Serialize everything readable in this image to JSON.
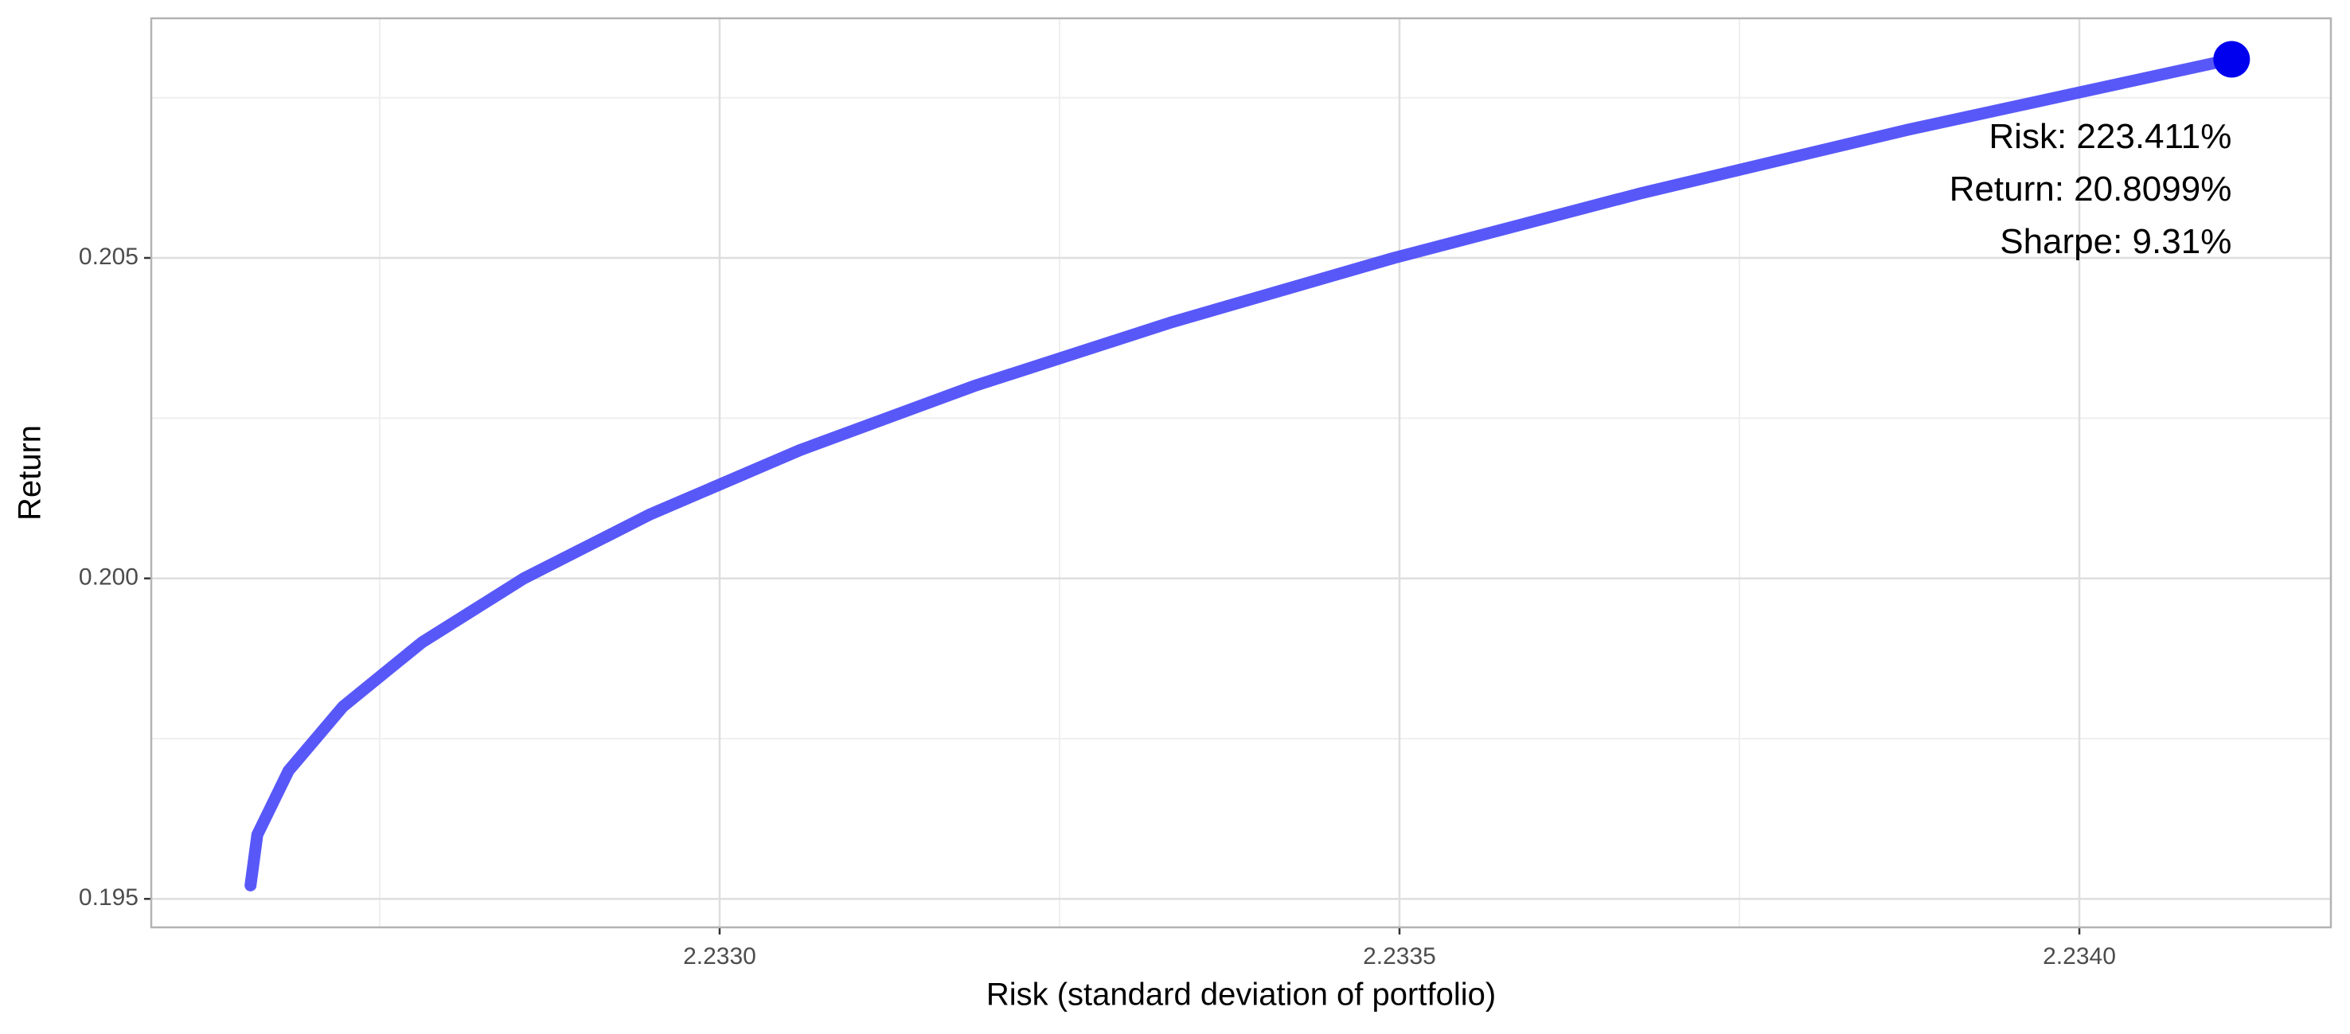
{
  "chart_data": {
    "type": "line",
    "x_label": "Risk (standard deviation of portfolio)",
    "y_label": "Return",
    "x": [
      2.232655,
      2.23266,
      2.232683,
      2.232723,
      2.232781,
      2.232856,
      2.232949,
      2.233059,
      2.233187,
      2.233333,
      2.233496,
      2.233676,
      2.233874,
      2.234112
    ],
    "series": [
      {
        "color": "#4646f8",
        "values": [
          0.19521,
          0.196,
          0.197,
          0.198,
          0.199,
          0.2,
          0.201,
          0.202,
          0.203,
          0.204,
          0.205,
          0.206,
          0.207,
          0.208099
        ]
      }
    ],
    "highlight_color": "#0000ee",
    "annotations": [
      "Risk: 223.411%",
      "Return: 20.8099%",
      "Sharpe: 9.31%"
    ],
    "xlim": [
      2.232582,
      2.234185
    ],
    "ylim": [
      0.194556,
      0.208738
    ],
    "xticks": [
      {
        "value": 2.233,
        "label": "2.2330"
      },
      2.2335,
      {
        "value": 2.234,
        "label": "2.2340"
      }
    ],
    "yticks": [
      0.195,
      {
        "value": 0.2,
        "label": "0.200"
      },
      0.205
    ],
    "minor_xticks": [
      2.23275,
      2.23325,
      2.23375
    ],
    "minor_yticks": [
      0.1975,
      0.2025,
      0.2075
    ],
    "grid": true
  }
}
